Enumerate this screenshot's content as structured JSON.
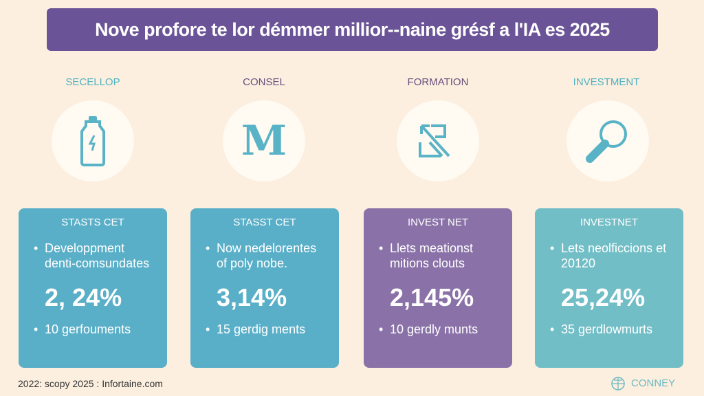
{
  "header": {
    "title": "Nove profore te lor démmer millior--naine grésf a l'IA es 2025"
  },
  "columns": [
    {
      "category": "SECELLOP",
      "category_color": "#4fb2c2",
      "icon": "battery-bottle-icon",
      "card_color": "#5aafc8",
      "card": {
        "heading": "STASTS CET",
        "bullet1": "Developpment denti-comsundates",
        "value": "2, 24%",
        "bullet2": "10 gerfouments"
      }
    },
    {
      "category": "CONSEL",
      "category_color": "#6a4d7e",
      "icon": "letter-m-icon",
      "card_color": "#5aafc8",
      "card": {
        "heading": "STASST CET",
        "bullet1": "Now nedelorentes of poly nobe.",
        "value": "3,14%",
        "bullet2": "15 gerdig ments"
      }
    },
    {
      "category": "FORMATION",
      "category_color": "#6a4d7e",
      "icon": "growth-arrow-icon",
      "card_color": "#8a72a8",
      "card": {
        "heading": "INVEST NET",
        "bullet1": "Llets meationst mitions clouts",
        "value": "2,145%",
        "bullet2": "10 gerdly munts"
      }
    },
    {
      "category": "INVESTMENT",
      "category_color": "#4fb2c2",
      "icon": "magnifier-icon",
      "card_color": "#72bec6",
      "card": {
        "heading": "INVESTNET",
        "bullet1": "Lets neolficcions et 20120",
        "value": "25,24%",
        "bullet2": "35 gerdlowmurts"
      }
    }
  ],
  "footer": {
    "source": "2022: scopy 2025 : Infortaine.com",
    "logo_text": "CONNEY"
  },
  "colors": {
    "background": "#fcefdf",
    "title_bar": "#6a5396",
    "icon": "#58b3c6"
  }
}
